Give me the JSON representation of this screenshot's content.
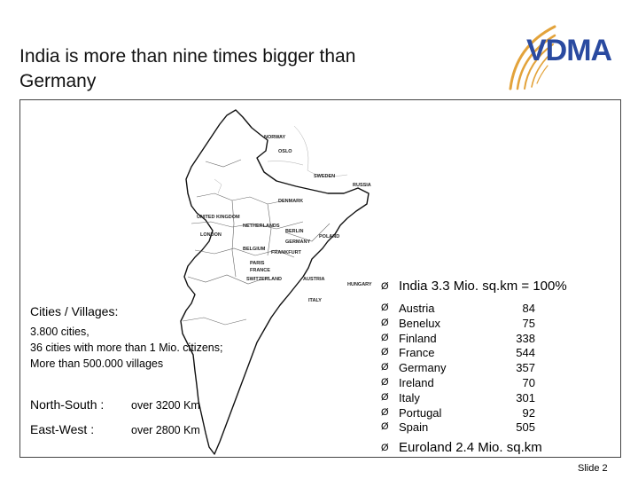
{
  "slide": {
    "title_line1": "India is more than nine times bigger than",
    "title_line2": "Germany",
    "footer": "Slide 2"
  },
  "logo": {
    "text": "VDMA",
    "colors": {
      "arcs": "#e3a33b",
      "text": "#2a4aa0"
    }
  },
  "map": {
    "labels": [
      "NORWAY",
      "OSLO",
      "SWEDEN",
      "RUSSIA",
      "DENMARK",
      "UNITED KINGDOM",
      "LONDON",
      "NETHERLANDS",
      "BERLIN",
      "GERMANY",
      "POLAND",
      "BELGIUM",
      "FRANKFURT",
      "PARIS",
      "FRANCE",
      "SWITZERLAND",
      "AUSTRIA",
      "HUNGARY",
      "ITALY"
    ]
  },
  "left": {
    "heading": "Cities / Villages:",
    "lines": [
      "3.800 cities,",
      "36 cities with more than 1 Mio. citizens;",
      "More than 500.000 villages"
    ],
    "north_south_label": "North-South :",
    "north_south_value": "over 3200 Km",
    "east_west_label": "East-West :",
    "east_west_value": "over 2800 Km"
  },
  "right": {
    "arrow": "Ø",
    "header": "India   3.3 Mio.  sq.km = 100%",
    "countries": [
      {
        "name": "Austria",
        "value": "84"
      },
      {
        "name": "Benelux",
        "value": "75"
      },
      {
        "name": "Finland",
        "value": "338"
      },
      {
        "name": "France",
        "value": "544"
      },
      {
        "name": "Germany",
        "value": "357"
      },
      {
        "name": "Ireland",
        "value": "70"
      },
      {
        "name": "Italy",
        "value": "301"
      },
      {
        "name": "Portugal",
        "value": "92"
      },
      {
        "name": "Spain",
        "value": "505"
      }
    ],
    "footer": "Euroland 2.4 Mio. sq.km"
  }
}
